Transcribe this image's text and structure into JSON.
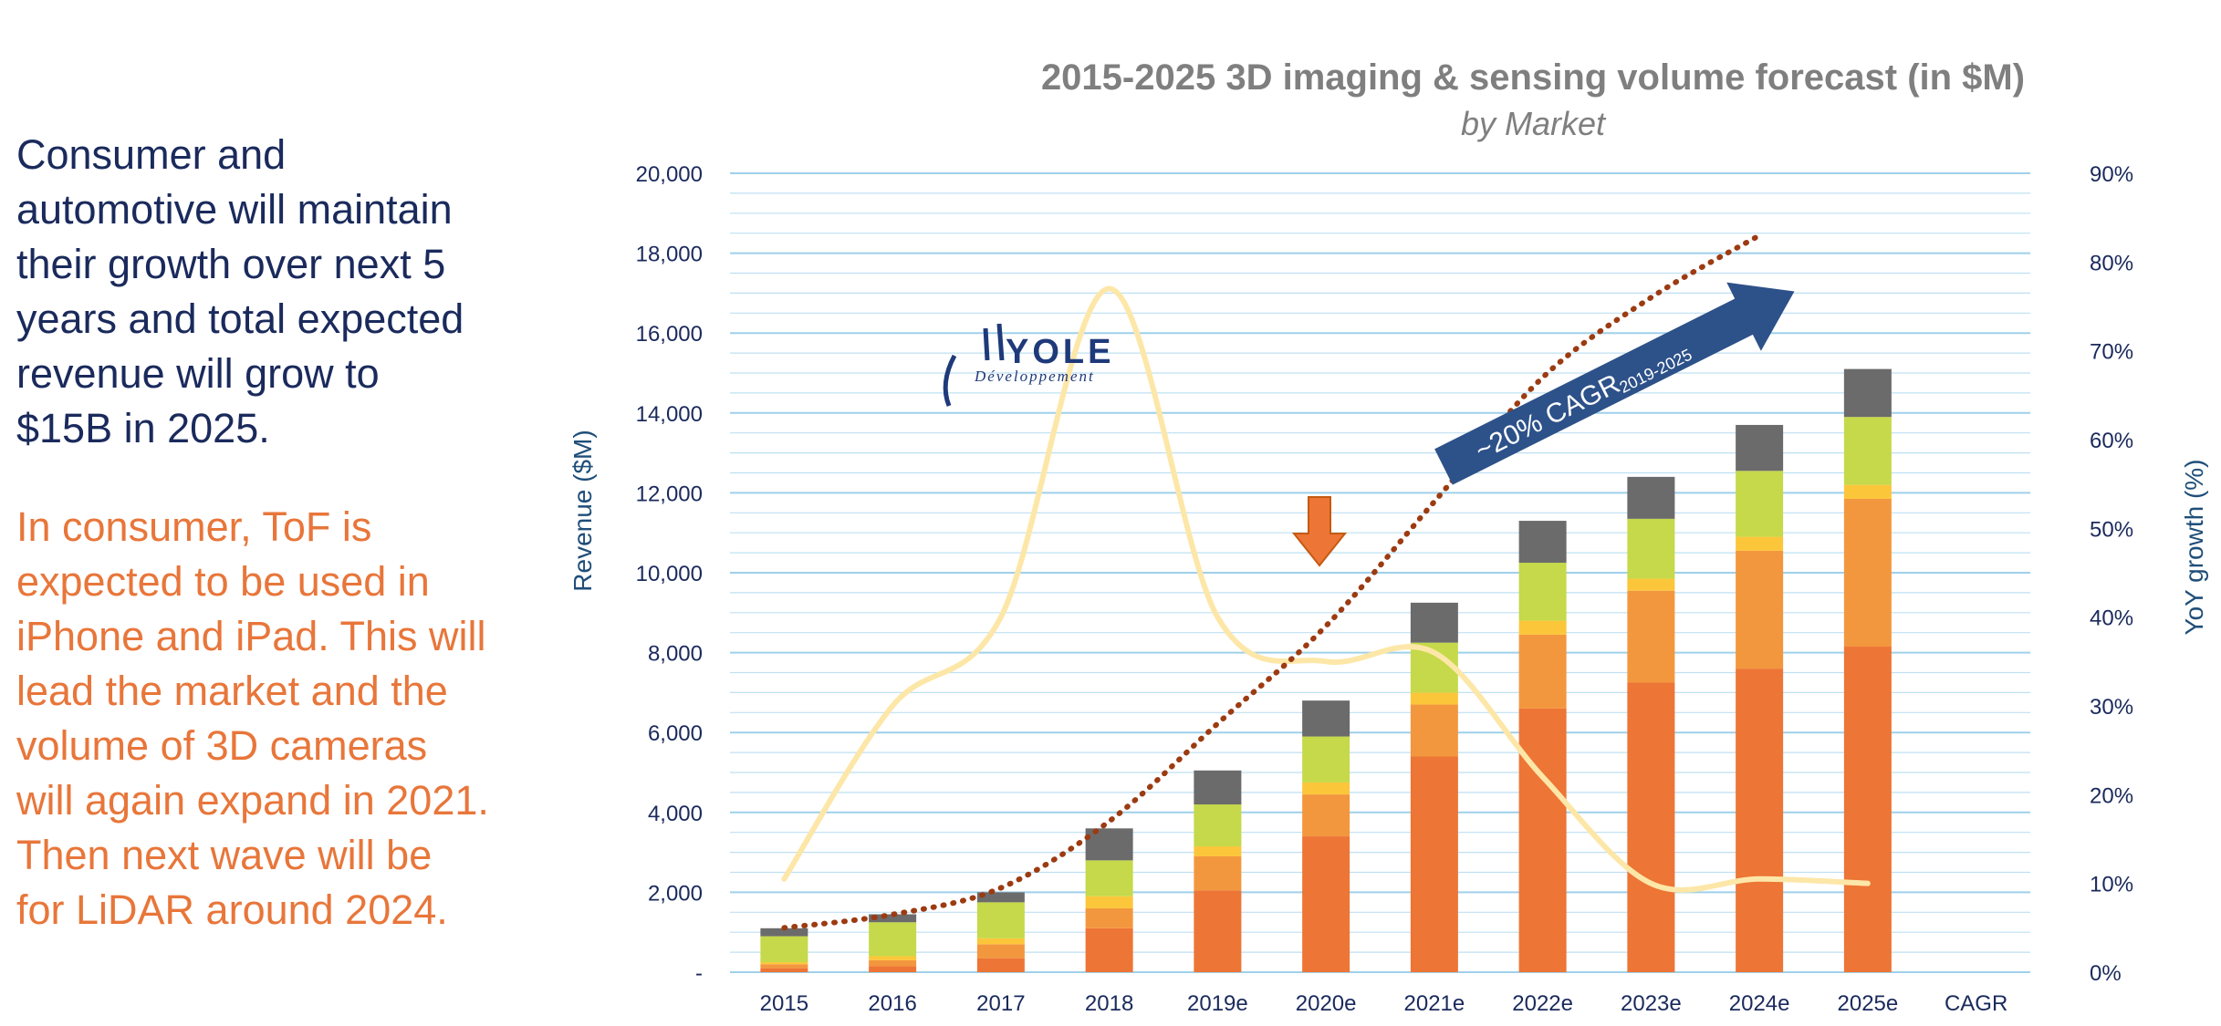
{
  "left_text": {
    "paragraph1": [
      "Consumer and",
      "automotive will maintain",
      "their growth over next 5",
      "years and total expected",
      "revenue will grow to",
      "$15B in 2025."
    ],
    "paragraph2": [
      "In consumer, ToF is",
      "expected to be used in",
      "iPhone and iPad. This will",
      "lead the market and the",
      "volume of 3D cameras",
      "will again expand  in 2021.",
      "Then next wave will be",
      "for LiDAR around 2024."
    ]
  },
  "logo": {
    "name": "YOLE",
    "sub": "Développement"
  },
  "annotation": {
    "cagr_text": "~20% CAGR",
    "cagr_sub": "2019-2025"
  },
  "colors": {
    "seg1": "#ed7535",
    "seg2": "#f3973e",
    "seg3": "#fcc63a",
    "seg4": "#c5d94a",
    "seg5": "#6b6b6b",
    "yoy_line": "#fde7a8",
    "dotted_line": "#9c3b12",
    "arrow_blue": "#2d5189",
    "arrow_orange": "#ed7535",
    "grid": "#bfe0f2"
  },
  "chart_data": {
    "type": "bar",
    "title": "2015-2025 3D imaging & sensing volume forecast (in $M)",
    "subtitle": "by Market",
    "ylabel": "Revenue ($M)",
    "y2label": "YoY growth (%)",
    "ylim": [
      0,
      20000
    ],
    "y2lim": [
      0,
      90
    ],
    "yticks": [
      "-",
      "2,000",
      "4,000",
      "6,000",
      "8,000",
      "10,000",
      "12,000",
      "14,000",
      "16,000",
      "18,000",
      "20,000"
    ],
    "y2ticks": [
      "0%",
      "10%",
      "20%",
      "30%",
      "40%",
      "50%",
      "60%",
      "70%",
      "80%",
      "90%"
    ],
    "categories": [
      "2015",
      "2016",
      "2017",
      "2018",
      "2019e",
      "2020e",
      "2021e",
      "2022e",
      "2023e",
      "2024e",
      "2025e",
      "CAGR"
    ],
    "series": [
      {
        "values": [
          100,
          150,
          350,
          1100,
          2050,
          3400,
          5400,
          6600,
          7250,
          7600,
          8150,
          null
        ]
      },
      {
        "values": [
          100,
          150,
          350,
          500,
          850,
          1050,
          1300,
          1850,
          2300,
          2950,
          3700,
          null
        ]
      },
      {
        "values": [
          50,
          100,
          150,
          300,
          250,
          300,
          300,
          350,
          300,
          350,
          350,
          null
        ]
      },
      {
        "values": [
          650,
          850,
          900,
          900,
          1050,
          1150,
          1250,
          1450,
          1500,
          1650,
          1700,
          null
        ]
      },
      {
        "values": [
          200,
          200,
          250,
          800,
          850,
          900,
          1000,
          1050,
          1050,
          1150,
          1200,
          null
        ]
      }
    ],
    "yoy_growth_pct": [
      10.5,
      30,
      40,
      77,
      40,
      35,
      36,
      22,
      10,
      10.5,
      10
    ],
    "dotted_trend_pct": [
      5,
      6.5,
      9.5,
      17,
      28,
      39,
      53,
      67,
      76,
      83
    ]
  }
}
